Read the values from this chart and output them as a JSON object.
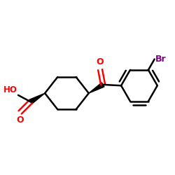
{
  "background_color": "#ffffff",
  "bond_color": "#000000",
  "oxygen_color": "#ff0000",
  "bromine_color": "#800080",
  "figsize": [
    2.5,
    2.5
  ],
  "dpi": 100,
  "xlim": [
    0.05,
    0.95
  ],
  "ylim": [
    0.22,
    0.88
  ]
}
